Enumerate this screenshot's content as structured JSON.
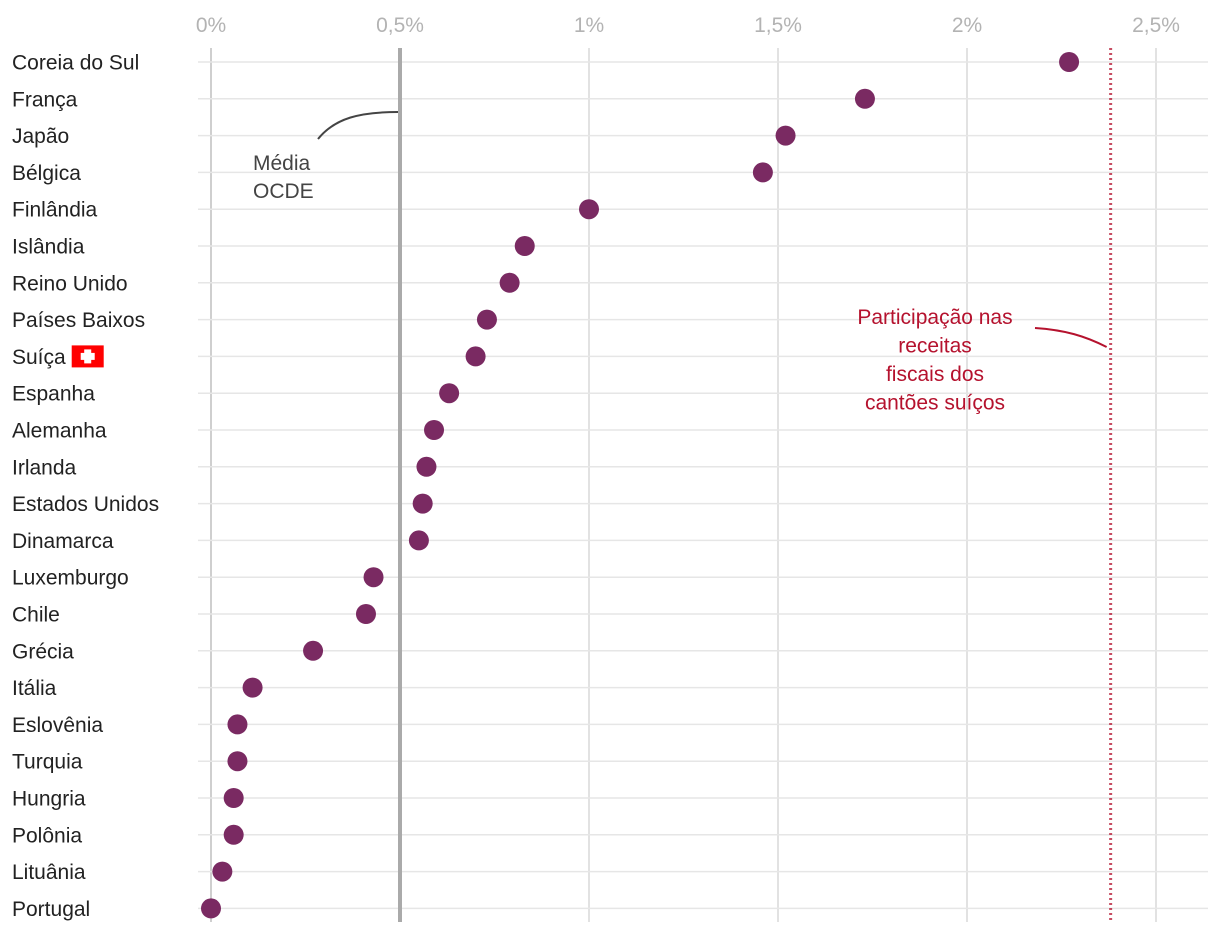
{
  "chart_data": {
    "type": "scatter",
    "title": "",
    "xlabel": "",
    "ylabel": "",
    "xlim": [
      0,
      2.6
    ],
    "x_ticks": [
      {
        "value": 0,
        "label": "0%"
      },
      {
        "value": 0.5,
        "label": "0,5%"
      },
      {
        "value": 1,
        "label": "1%"
      },
      {
        "value": 1.5,
        "label": "1,5%"
      },
      {
        "value": 2,
        "label": "2%"
      },
      {
        "value": 2.5,
        "label": "2,5%"
      }
    ],
    "categories": [
      "Coreia do Sul",
      "França",
      "Japão",
      "Bélgica",
      "Finlândia",
      "Islândia",
      "Reino Unido",
      "Países Baixos",
      "Suíça",
      "Espanha",
      "Alemanha",
      "Irlanda",
      "Estados Unidos",
      "Dinamarca",
      "Luxemburgo",
      "Chile",
      "Grécia",
      "Itália",
      "Eslovênia",
      "Turquia",
      "Hungria",
      "Polônia",
      "Lituânia",
      "Portugal"
    ],
    "values": [
      2.27,
      1.73,
      1.52,
      1.46,
      1.0,
      0.83,
      0.79,
      0.73,
      0.7,
      0.63,
      0.59,
      0.57,
      0.56,
      0.55,
      0.43,
      0.41,
      0.27,
      0.11,
      0.07,
      0.07,
      0.06,
      0.06,
      0.03,
      0.0
    ],
    "highlighted_category": "Suíça",
    "reference_lines": [
      {
        "id": "oecd",
        "value": 0.5,
        "label_lines": [
          "Média",
          "OCDE"
        ],
        "color": "#aaaaaa",
        "style": "solid"
      },
      {
        "id": "cantons",
        "value": 2.38,
        "label_lines": [
          "Participação nas",
          "receitas",
          "fiscais dos",
          "cantões suíços"
        ],
        "color": "#b5122e",
        "style": "dotted"
      }
    ],
    "colors": {
      "dot": "#7a2a62",
      "flag": "#ff0000",
      "annotation_red": "#b5122e",
      "annotation_gray": "#444444"
    }
  }
}
